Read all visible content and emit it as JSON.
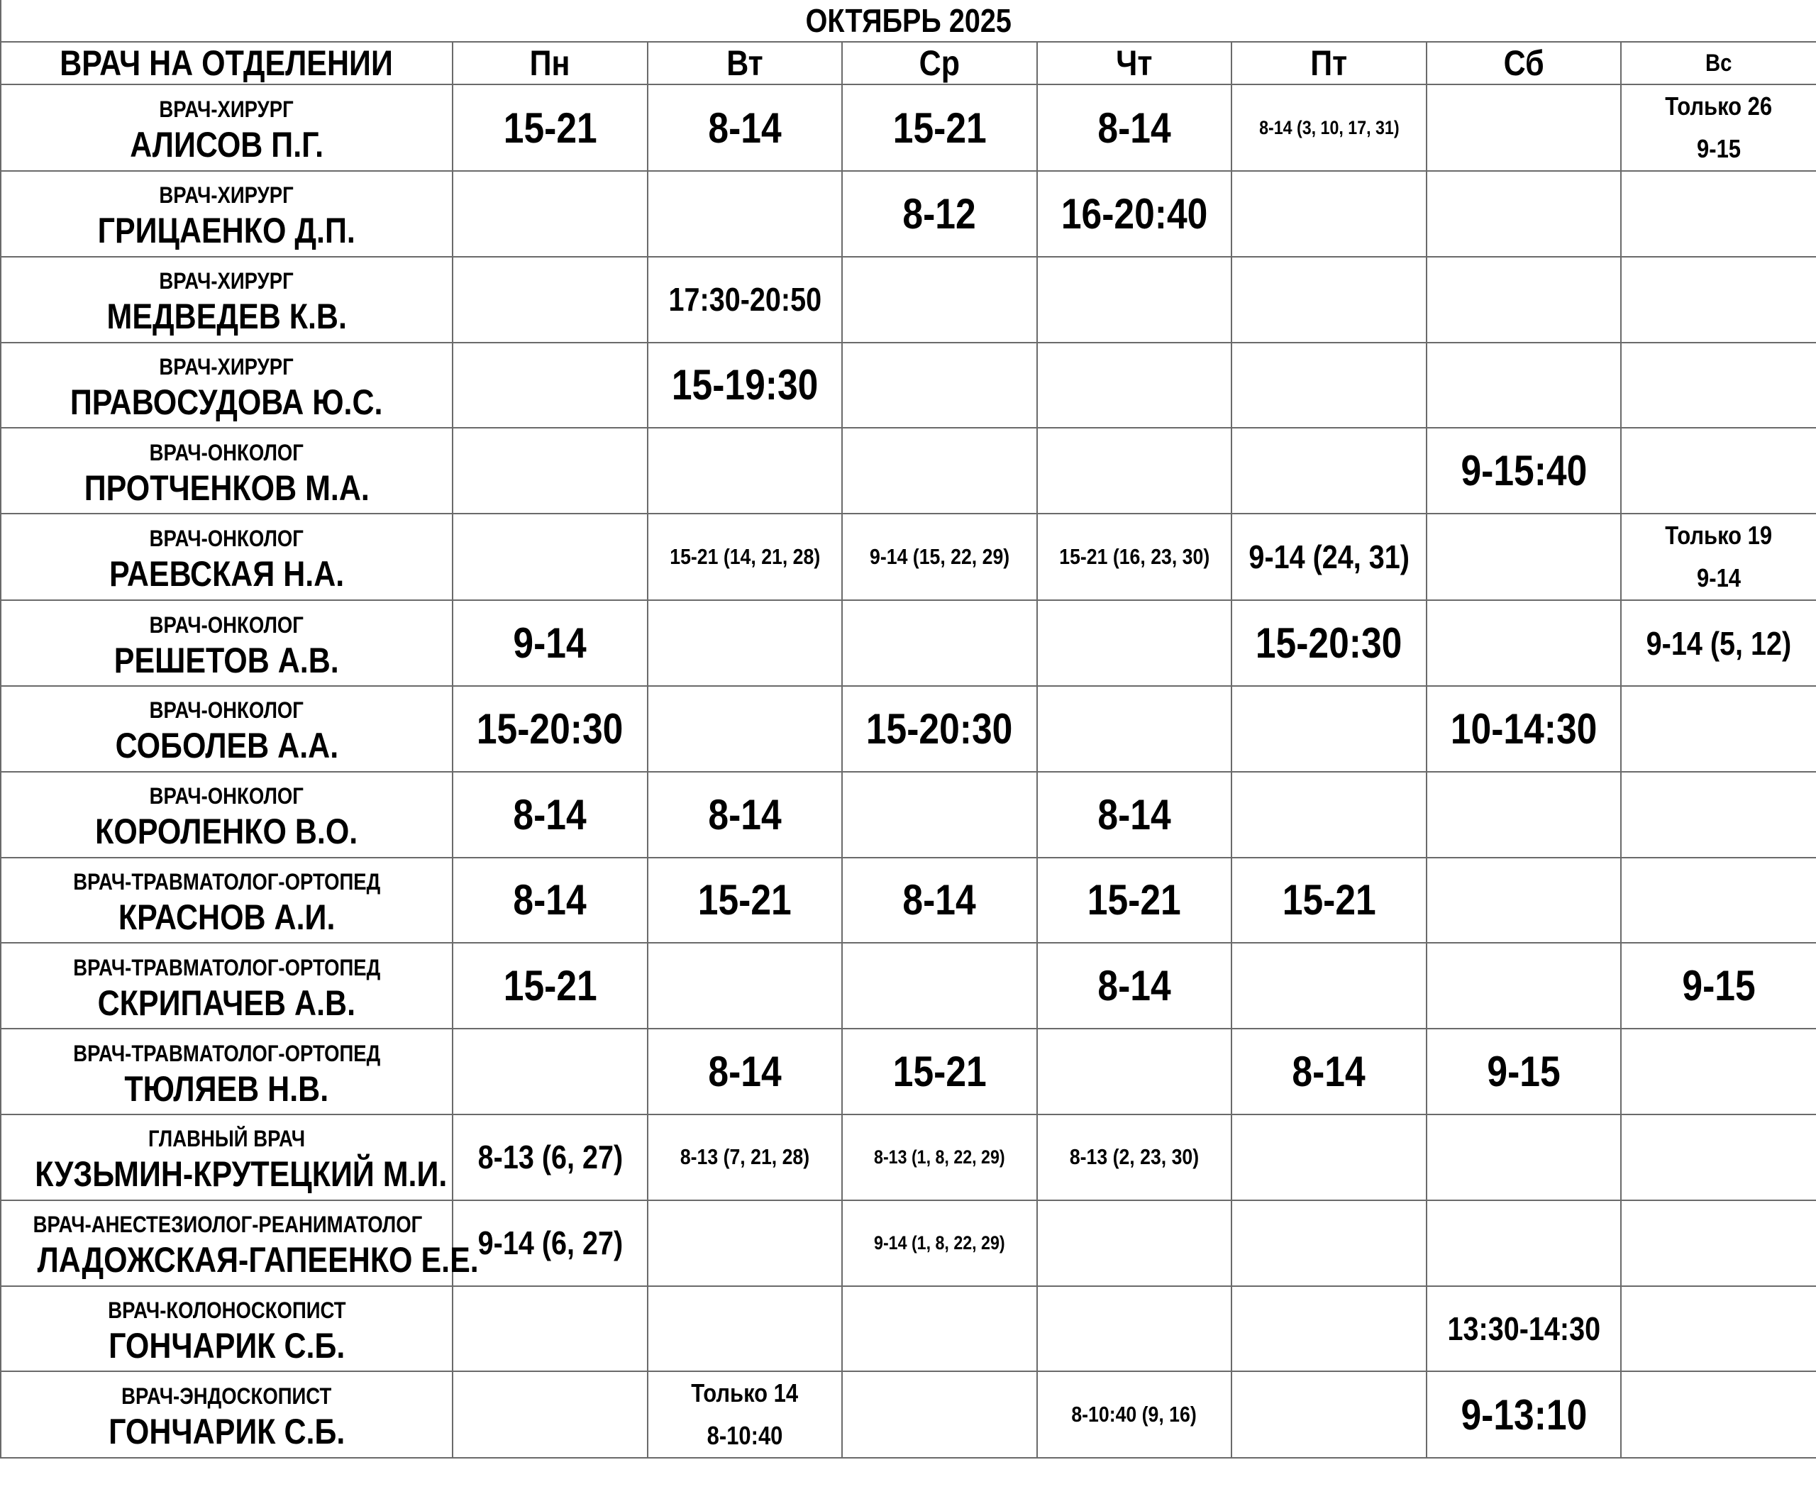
{
  "title": "ОКТЯБРЬ 2025",
  "header": {
    "doctor_col": "ВРАЧ НА ОТДЕЛЕНИИ",
    "days": [
      "Пн",
      "Вт",
      "Ср",
      "Чт",
      "Пт",
      "Сб",
      "Вс"
    ]
  },
  "rows": [
    {
      "spec": "ВРАЧ-ХИРУРГ",
      "name": "АЛИСОВ П.Г.",
      "cells": [
        {
          "t": "15-21",
          "s": "L"
        },
        {
          "t": "8-14",
          "s": "L"
        },
        {
          "t": "15-21",
          "s": "L"
        },
        {
          "t": "8-14",
          "s": "L"
        },
        {
          "t": "8-14 (3, 10, 17, 31)",
          "s": "XS"
        },
        {
          "t": "",
          "s": "L"
        },
        {
          "lines": [
            "Только 26",
            "9-15"
          ],
          "s": "T"
        }
      ]
    },
    {
      "spec": "ВРАЧ-ХИРУРГ",
      "name": "ГРИЦАЕНКО Д.П.",
      "cells": [
        {
          "t": "",
          "s": "L"
        },
        {
          "t": "",
          "s": "L"
        },
        {
          "t": "8-12",
          "s": "L"
        },
        {
          "t": "16-20:40",
          "s": "L"
        },
        {
          "t": "",
          "s": "L"
        },
        {
          "t": "",
          "s": "L"
        },
        {
          "t": "",
          "s": "L"
        }
      ]
    },
    {
      "spec": "ВРАЧ-ХИРУРГ",
      "name": "МЕДВЕДЕВ К.В.",
      "cells": [
        {
          "t": "",
          "s": "L"
        },
        {
          "t": "17:30-20:50",
          "s": "M"
        },
        {
          "t": "",
          "s": "L"
        },
        {
          "t": "",
          "s": "L"
        },
        {
          "t": "",
          "s": "L"
        },
        {
          "t": "",
          "s": "L"
        },
        {
          "t": "",
          "s": "L"
        }
      ]
    },
    {
      "spec": "ВРАЧ-ХИРУРГ",
      "name": "ПРАВОСУДОВА Ю.С.",
      "cells": [
        {
          "t": "",
          "s": "L"
        },
        {
          "t": "15-19:30",
          "s": "L"
        },
        {
          "t": "",
          "s": "L"
        },
        {
          "t": "",
          "s": "L"
        },
        {
          "t": "",
          "s": "L"
        },
        {
          "t": "",
          "s": "L"
        },
        {
          "t": "",
          "s": "L"
        }
      ]
    },
    {
      "spec": "ВРАЧ-ОНКОЛОГ",
      "name": "ПРОТЧЕНКОВ М.А.",
      "cells": [
        {
          "t": "",
          "s": "L"
        },
        {
          "t": "",
          "s": "L"
        },
        {
          "t": "",
          "s": "L"
        },
        {
          "t": "",
          "s": "L"
        },
        {
          "t": "",
          "s": "L"
        },
        {
          "t": "9-15:40",
          "s": "L"
        },
        {
          "t": "",
          "s": "L"
        }
      ]
    },
    {
      "spec": "ВРАЧ-ОНКОЛОГ",
      "name": "РАЕВСКАЯ Н.А.",
      "cells": [
        {
          "t": "",
          "s": "L"
        },
        {
          "t": "15-21 (14, 21, 28)",
          "s": "S"
        },
        {
          "t": "9-14 (15, 22, 29)",
          "s": "S"
        },
        {
          "t": "15-21 (16, 23, 30)",
          "s": "S"
        },
        {
          "t": "9-14 (24, 31)",
          "s": "M"
        },
        {
          "t": "",
          "s": "L"
        },
        {
          "lines": [
            "Только 19",
            "9-14"
          ],
          "s": "T"
        }
      ]
    },
    {
      "spec": "ВРАЧ-ОНКОЛОГ",
      "name": "РЕШЕТОВ А.В.",
      "cells": [
        {
          "t": "9-14",
          "s": "L"
        },
        {
          "t": "",
          "s": "L"
        },
        {
          "t": "",
          "s": "L"
        },
        {
          "t": "",
          "s": "L"
        },
        {
          "t": "15-20:30",
          "s": "L"
        },
        {
          "t": "",
          "s": "L"
        },
        {
          "t": "9-14 (5, 12)",
          "s": "M"
        }
      ]
    },
    {
      "spec": "ВРАЧ-ОНКОЛОГ",
      "name": "СОБОЛЕВ А.А.",
      "cells": [
        {
          "t": "15-20:30",
          "s": "L"
        },
        {
          "t": "",
          "s": "L"
        },
        {
          "t": "15-20:30",
          "s": "L"
        },
        {
          "t": "",
          "s": "L"
        },
        {
          "t": "",
          "s": "L"
        },
        {
          "t": "10-14:30",
          "s": "L"
        },
        {
          "t": "",
          "s": "L"
        }
      ]
    },
    {
      "spec": "ВРАЧ-ОНКОЛОГ",
      "name": "КОРОЛЕНКО В.О.",
      "cells": [
        {
          "t": "8-14",
          "s": "L"
        },
        {
          "t": "8-14",
          "s": "L"
        },
        {
          "t": "",
          "s": "L"
        },
        {
          "t": "8-14",
          "s": "L"
        },
        {
          "t": "",
          "s": "L"
        },
        {
          "t": "",
          "s": "L"
        },
        {
          "t": "",
          "s": "L"
        }
      ]
    },
    {
      "spec": "ВРАЧ-ТРАВМАТОЛОГ-ОРТОПЕД",
      "name": "КРАСНОВ А.И.",
      "cells": [
        {
          "t": "8-14",
          "s": "L"
        },
        {
          "t": "15-21",
          "s": "L"
        },
        {
          "t": "8-14",
          "s": "L"
        },
        {
          "t": "15-21",
          "s": "L"
        },
        {
          "t": "15-21",
          "s": "L"
        },
        {
          "t": "",
          "s": "L"
        },
        {
          "t": "",
          "s": "L"
        }
      ]
    },
    {
      "spec": "ВРАЧ-ТРАВМАТОЛОГ-ОРТОПЕД",
      "name": "СКРИПАЧЕВ А.В.",
      "cells": [
        {
          "t": "15-21",
          "s": "L"
        },
        {
          "t": "",
          "s": "L"
        },
        {
          "t": "",
          "s": "L"
        },
        {
          "t": "8-14",
          "s": "L"
        },
        {
          "t": "",
          "s": "L"
        },
        {
          "t": "",
          "s": "L"
        },
        {
          "t": "9-15",
          "s": "L"
        }
      ]
    },
    {
      "spec": "ВРАЧ-ТРАВМАТОЛОГ-ОРТОПЕД",
      "name": "ТЮЛЯЕВ Н.В.",
      "cells": [
        {
          "t": "",
          "s": "L"
        },
        {
          "t": "8-14",
          "s": "L"
        },
        {
          "t": "15-21",
          "s": "L"
        },
        {
          "t": "",
          "s": "L"
        },
        {
          "t": "8-14",
          "s": "L"
        },
        {
          "t": "9-15",
          "s": "L"
        },
        {
          "t": "",
          "s": "L"
        }
      ]
    },
    {
      "spec": "ГЛАВНЫЙ ВРАЧ",
      "name": "КУЗЬМИН-КРУТЕЦКИЙ М.И.",
      "cells": [
        {
          "t": "8-13 (6, 27)",
          "s": "M"
        },
        {
          "t": "8-13 (7, 21, 28)",
          "s": "S"
        },
        {
          "t": "8-13 (1, 8, 22, 29)",
          "s": "XS"
        },
        {
          "t": "8-13 (2, 23, 30)",
          "s": "S"
        },
        {
          "t": "",
          "s": "L"
        },
        {
          "t": "",
          "s": "L"
        },
        {
          "t": "",
          "s": "L"
        }
      ]
    },
    {
      "spec": "ВРАЧ-АНЕСТЕЗИОЛОГ-РЕАНИМАТОЛОГ",
      "name": "ЛАДОЖСКАЯ-ГАПЕЕНКО Е.Е.",
      "cells": [
        {
          "t": "9-14 (6, 27)",
          "s": "M"
        },
        {
          "t": "",
          "s": "L"
        },
        {
          "t": "9-14 (1, 8, 22, 29)",
          "s": "XS"
        },
        {
          "t": "",
          "s": "L"
        },
        {
          "t": "",
          "s": "L"
        },
        {
          "t": "",
          "s": "L"
        },
        {
          "t": "",
          "s": "L"
        }
      ]
    },
    {
      "spec": "ВРАЧ-КОЛОНОСКОПИСТ",
      "name": "ГОНЧАРИК С.Б.",
      "cells": [
        {
          "t": "",
          "s": "L"
        },
        {
          "t": "",
          "s": "L"
        },
        {
          "t": "",
          "s": "L"
        },
        {
          "t": "",
          "s": "L"
        },
        {
          "t": "",
          "s": "L"
        },
        {
          "t": "13:30-14:30",
          "s": "M"
        },
        {
          "t": "",
          "s": "L"
        }
      ]
    },
    {
      "spec": "ВРАЧ-ЭНДОСКОПИСТ",
      "name": "ГОНЧАРИК С.Б.",
      "cells": [
        {
          "t": "",
          "s": "L"
        },
        {
          "lines": [
            "Только 14",
            "8-10:40"
          ],
          "s": "T"
        },
        {
          "t": "",
          "s": "L"
        },
        {
          "t": "8-10:40 (9, 16)",
          "s": "S"
        },
        {
          "t": "",
          "s": "L"
        },
        {
          "t": "9-13:10",
          "s": "L"
        },
        {
          "t": "",
          "s": "L"
        }
      ]
    }
  ]
}
